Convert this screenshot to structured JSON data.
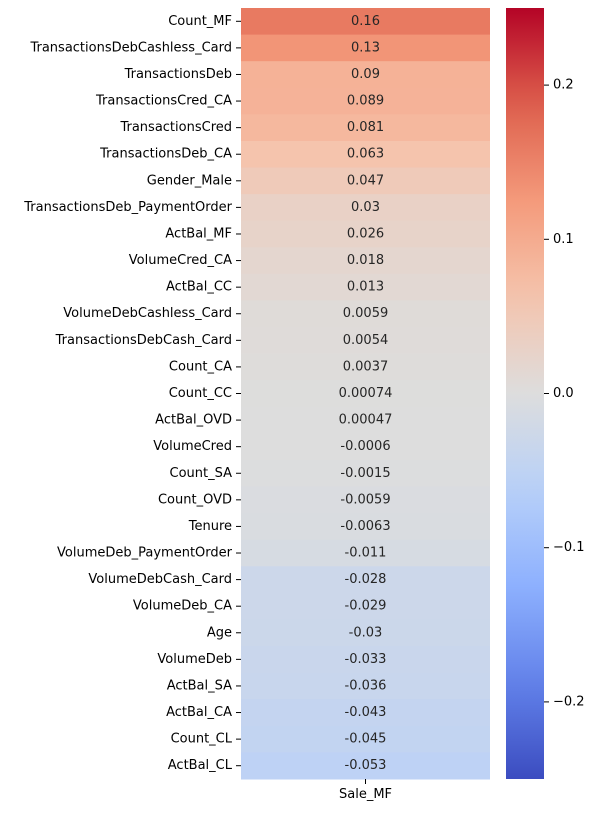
{
  "chart_data": {
    "type": "heatmap",
    "title": "",
    "xlabel": "",
    "ylabel": "",
    "columns": [
      "Sale_MF"
    ],
    "rows": [
      "Count_MF",
      "TransactionsDebCashless_Card",
      "TransactionsDeb",
      "TransactionsCred_CA",
      "TransactionsCred",
      "TransactionsDeb_CA",
      "Gender_Male",
      "TransactionsDeb_PaymentOrder",
      "ActBal_MF",
      "VolumeCred_CA",
      "ActBal_CC",
      "VolumeDebCashless_Card",
      "TransactionsDebCash_Card",
      "Count_CA",
      "Count_CC",
      "ActBal_OVD",
      "VolumeCred",
      "Count_SA",
      "Count_OVD",
      "Tenure",
      "VolumeDeb_PaymentOrder",
      "VolumeDebCash_Card",
      "VolumeDeb_CA",
      "Age",
      "VolumeDeb",
      "ActBal_SA",
      "ActBal_CA",
      "Count_CL",
      "ActBal_CL"
    ],
    "values": [
      0.16,
      0.13,
      0.09,
      0.089,
      0.081,
      0.063,
      0.047,
      0.03,
      0.026,
      0.018,
      0.013,
      0.0059,
      0.0054,
      0.0037,
      0.00074,
      0.00047,
      -0.0006,
      -0.0015,
      -0.0059,
      -0.0063,
      -0.011,
      -0.028,
      -0.029,
      -0.03,
      -0.033,
      -0.036,
      -0.043,
      -0.045,
      -0.053
    ],
    "value_labels": [
      "0.16",
      "0.13",
      "0.09",
      "0.089",
      "0.081",
      "0.063",
      "0.047",
      "0.03",
      "0.026",
      "0.018",
      "0.013",
      "0.0059",
      "0.0054",
      "0.0037",
      "0.00074",
      "0.00047",
      "-0.0006",
      "-0.0015",
      "-0.0059",
      "-0.0063",
      "-0.011",
      "-0.028",
      "-0.029",
      "-0.03",
      "-0.033",
      "-0.036",
      "-0.043",
      "-0.045",
      "-0.053"
    ],
    "colormap": "coolwarm",
    "vmin": -0.25,
    "vmax": 0.25,
    "colorbar_ticks": [
      0.2,
      0.1,
      0.0,
      -0.1,
      -0.2
    ],
    "colorbar_tick_labels": [
      "0.2",
      "0.1",
      "0.0",
      "−0.1",
      "−0.2"
    ]
  }
}
